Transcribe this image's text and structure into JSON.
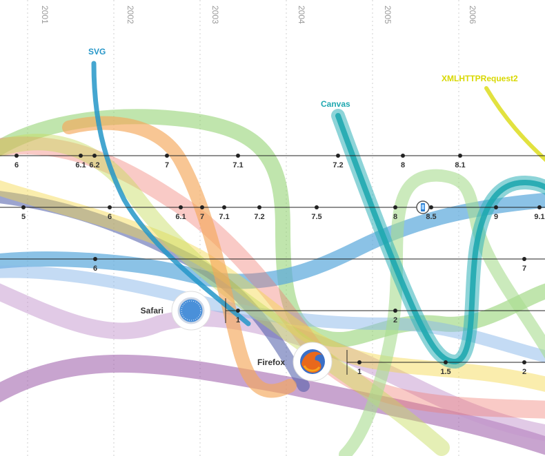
{
  "chart_data": {
    "type": "line",
    "years": [
      "2001",
      "2002",
      "2003",
      "2004",
      "2005",
      "2006"
    ],
    "browsers": [
      {
        "id": "browser1",
        "name": "",
        "versions": [
          "6",
          "6.1",
          "6.2",
          "7",
          "7.1",
          "7.2",
          "8",
          "8.1"
        ]
      },
      {
        "id": "browser2",
        "name": "",
        "versions": [
          "5",
          "6",
          "6.1",
          "7",
          "7.1",
          "7.2",
          "7.5",
          "8",
          "8.5",
          "9",
          "9.1"
        ]
      },
      {
        "id": "browser3",
        "name": "",
        "versions": [
          "6",
          "7"
        ]
      },
      {
        "id": "safari",
        "name": "Safari",
        "versions": [
          "1",
          "2"
        ]
      },
      {
        "id": "firefox",
        "name": "Firefox",
        "versions": [
          "1",
          "1.5",
          "2"
        ]
      }
    ],
    "features": [
      {
        "id": "svg",
        "label": "SVG",
        "color": "#2596c8"
      },
      {
        "id": "canvas",
        "label": "Canvas",
        "color": "#20a8b0"
      },
      {
        "id": "xhr2",
        "label": "XMLHTTPRequest2",
        "color": "#d8d800"
      }
    ],
    "mobile_marker": {
      "icon": "mobile-phone-icon",
      "at_version": "8.5"
    }
  },
  "colors": {
    "timeline": "#222222",
    "year_grid": "#cfcfcf",
    "year_text": "#9a9a9a",
    "svg": "#2596c8",
    "canvas": "#20a8b0",
    "xhr2": "#d8d800"
  }
}
